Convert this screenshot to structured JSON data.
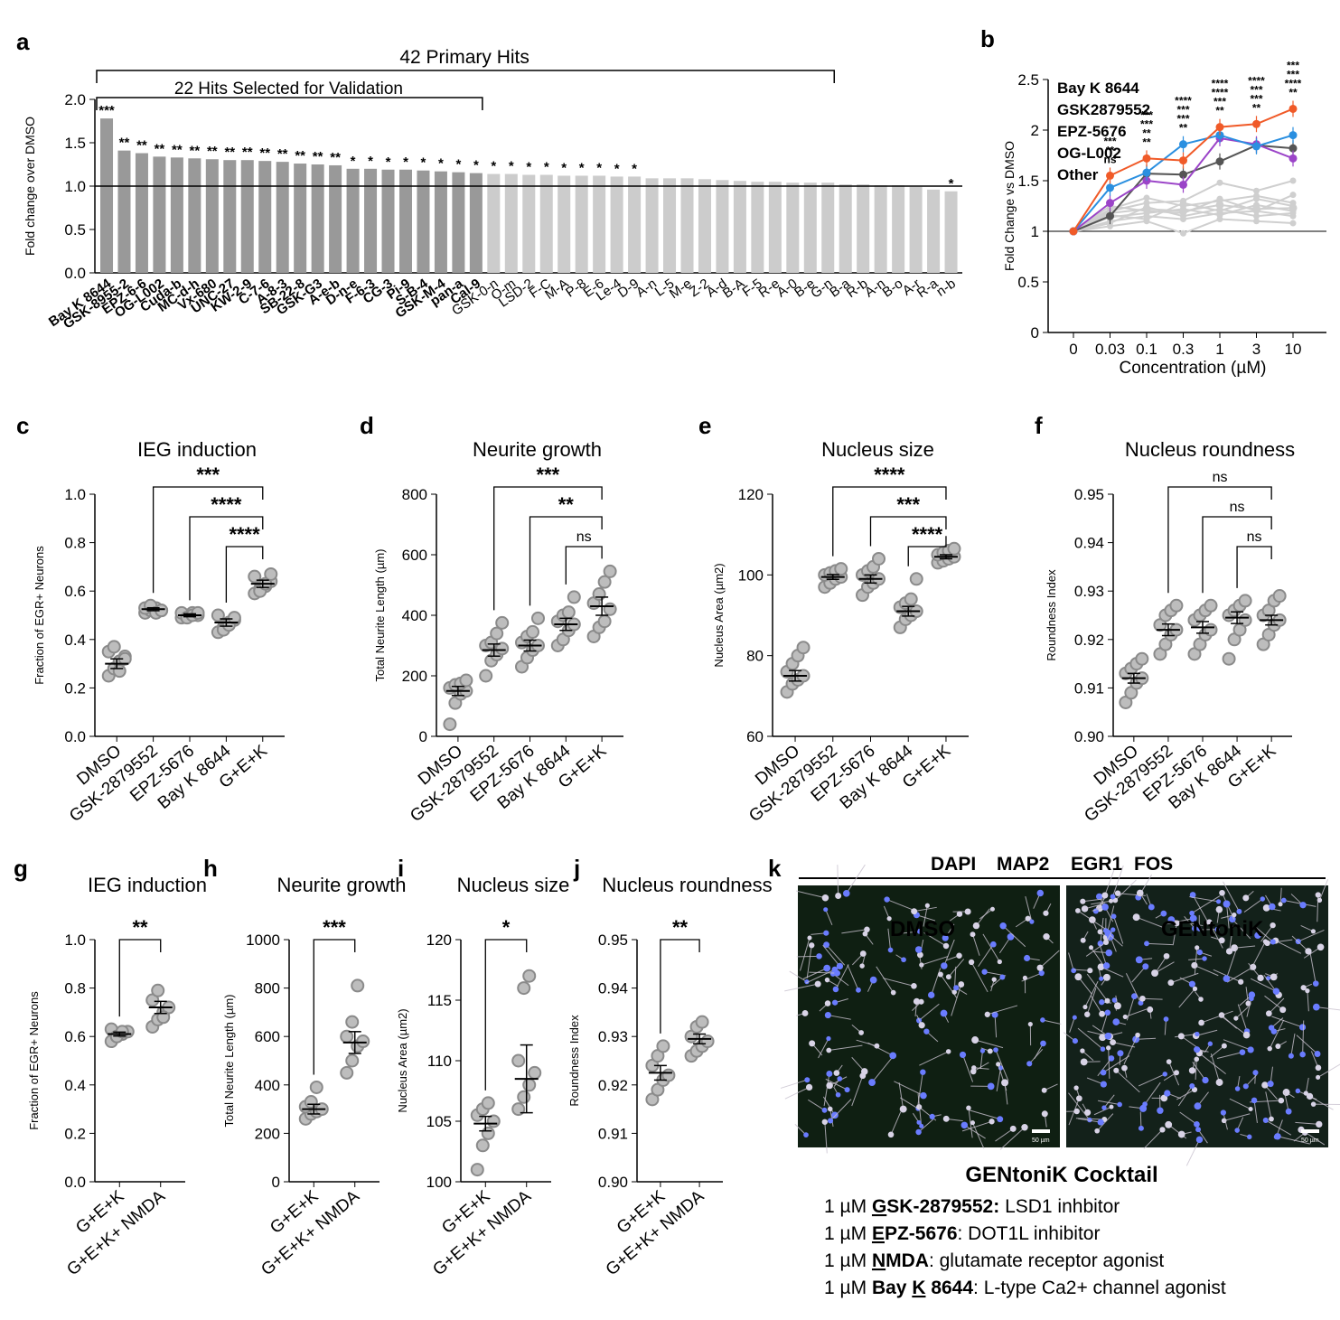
{
  "panel_letters": [
    "a",
    "b",
    "c",
    "d",
    "e",
    "f",
    "g",
    "h",
    "i",
    "j",
    "k"
  ],
  "colors": {
    "dark_bar": "#999999",
    "light_bar": "#cccccc",
    "dot": "#9e9e9e",
    "bay_k": "#f05a28",
    "gsk": "#2a8fe0",
    "epz": "#9b44c8",
    "og": "#555555",
    "other": "#cfcfcf"
  },
  "chart_data": [
    {
      "id": "a",
      "type": "bar",
      "ylabel": "Fold change over DMSO",
      "ylim": [
        0,
        2.0
      ],
      "yticks": [
        "0.0",
        "0.5",
        "1.0",
        "1.5",
        "2.0"
      ],
      "bracket_outer": "42 Primary Hits",
      "bracket_inner": "22 Hits Selected for Validation",
      "values": [
        1.78,
        1.41,
        1.38,
        1.34,
        1.33,
        1.32,
        1.31,
        1.3,
        1.3,
        1.29,
        1.28,
        1.26,
        1.25,
        1.24,
        1.2,
        1.2,
        1.19,
        1.19,
        1.18,
        1.17,
        1.16,
        1.15,
        1.14,
        1.14,
        1.13,
        1.13,
        1.12,
        1.12,
        1.12,
        1.11,
        1.11,
        1.09,
        1.09,
        1.09,
        1.08,
        1.07,
        1.06,
        1.05,
        1.05,
        1.04,
        1.04,
        1.04,
        1.02,
        1.02,
        1.01,
        1.01,
        0.99,
        0.96,
        0.94
      ],
      "stars": [
        "***",
        "**",
        "**",
        "**",
        "**",
        "**",
        "**",
        "**",
        "**",
        "**",
        "**",
        "**",
        "**",
        "**",
        "*",
        "*",
        "*",
        "*",
        "*",
        "*",
        "*",
        "*",
        "*",
        "*",
        "*",
        "*",
        "*",
        "*",
        "*",
        "*",
        "*",
        "",
        "",
        "",
        "",
        "",
        "",
        "",
        "",
        "",
        "",
        "",
        "",
        "",
        "",
        "",
        "",
        "",
        "*"
      ],
      "highlight_count": 22,
      "primary_count": 42,
      "tick_labels": [
        "Bay K 8644",
        "GSK-8955-2",
        "EPZ-6-6",
        "OG-L002",
        "Cuda-b",
        "MC-d-h",
        "Vx-680",
        "UNC-27",
        "KW-2-9",
        "C-7-6",
        "A-8-3",
        "SB-22-8",
        "GSK-G3",
        "A-e-b",
        "D-n-e",
        "F-6-3",
        "CG-3",
        "Pi-9",
        "S-B-4",
        "GSK-M-4",
        "pan-a",
        "Cal-9",
        "GSK-0-n",
        "O-m",
        "LSD-2",
        "F-C",
        "M-A",
        "P-8",
        "E-6",
        "Le-4",
        "D-9",
        "A-n",
        "L-5",
        "M-e",
        "Z-2",
        "A-d",
        "B-A",
        "F-5",
        "R-e",
        "A-0",
        "B-e",
        "G-n",
        "B-a",
        "R-b",
        "A-n",
        "B-o",
        "A-r",
        "R-a",
        "n-b"
      ]
    },
    {
      "id": "b",
      "type": "line",
      "ylabel": "Fold Change vs DMSO",
      "xlabel": "Concentration (µM)",
      "categories": [
        "0",
        "0.03",
        "0.1",
        "0.3",
        "1",
        "3",
        "10"
      ],
      "ylim": [
        0,
        2.5
      ],
      "yticks": [
        "0",
        "0.5",
        "1",
        "1.5",
        "2",
        "2.5"
      ],
      "series": [
        {
          "name": "Bay K 8644",
          "color": "#f05a28",
          "values": [
            1.0,
            1.55,
            1.72,
            1.7,
            2.03,
            2.06,
            2.21
          ]
        },
        {
          "name": "GSK2879552",
          "color": "#2a8fe0",
          "values": [
            1.0,
            1.43,
            1.58,
            1.86,
            1.95,
            1.84,
            1.95
          ]
        },
        {
          "name": "EPZ-5676",
          "color": "#9b44c8",
          "values": [
            1.0,
            1.28,
            1.5,
            1.46,
            1.92,
            1.86,
            1.72
          ]
        },
        {
          "name": "OG-L002",
          "color": "#555555",
          "values": [
            1.0,
            1.15,
            1.57,
            1.56,
            1.69,
            1.85,
            1.82
          ]
        },
        {
          "name": "Other",
          "color": "#cfcfcf",
          "values": [
            1.0,
            1.18,
            1.22,
            1.2,
            1.26,
            1.22,
            1.23
          ]
        }
      ],
      "other_lines": [
        [
          1.0,
          1.1,
          1.15,
          1.12,
          1.18,
          1.2,
          1.15
        ],
        [
          1.0,
          1.2,
          1.28,
          1.3,
          1.48,
          1.4,
          1.5
        ],
        [
          1.0,
          1.05,
          1.1,
          0.98,
          1.12,
          1.1,
          1.08
        ],
        [
          1.0,
          1.22,
          1.33,
          1.25,
          1.3,
          1.35,
          1.28
        ],
        [
          1.0,
          1.14,
          1.18,
          1.22,
          1.16,
          1.26,
          1.2
        ],
        [
          1.0,
          1.25,
          1.2,
          1.18,
          1.32,
          1.2,
          1.36
        ],
        [
          1.0,
          1.08,
          1.24,
          1.15,
          1.22,
          1.15,
          1.18
        ],
        [
          1.0,
          1.16,
          1.12,
          1.28,
          1.2,
          1.32,
          1.25
        ]
      ],
      "star_columns": [
        [
          "***",
          "**",
          "ns"
        ],
        [
          "***",
          "***",
          "**",
          "**"
        ],
        [
          "****",
          "***",
          "***",
          "**"
        ],
        [
          "****",
          "****",
          "***",
          "**"
        ],
        [
          "****",
          "***",
          "***",
          "**"
        ],
        [
          "***",
          "***",
          "****",
          "**"
        ]
      ]
    },
    {
      "id": "c",
      "type": "scatter",
      "title": "IEG induction",
      "ylabel": "Fraction of EGR+ Neurons",
      "ylim": [
        0.0,
        1.0
      ],
      "yticks": [
        "0.0",
        "0.2",
        "0.4",
        "0.6",
        "0.8",
        "1.0"
      ],
      "categories": [
        "DMSO",
        "GSK-2879552",
        "EPZ-5676",
        "Bay K 8644",
        "G+E+K"
      ],
      "points": [
        [
          0.25,
          0.28,
          0.31,
          0.33,
          0.35,
          0.37,
          0.27,
          0.32
        ],
        [
          0.51,
          0.52,
          0.53,
          0.52,
          0.53,
          0.54,
          0.51,
          0.52
        ],
        [
          0.49,
          0.5,
          0.51,
          0.5,
          0.51,
          0.49,
          0.5,
          0.51
        ],
        [
          0.43,
          0.45,
          0.47,
          0.48,
          0.5,
          0.44,
          0.46,
          0.49
        ],
        [
          0.59,
          0.61,
          0.62,
          0.64,
          0.66,
          0.6,
          0.63,
          0.67
        ]
      ],
      "means": [
        0.3,
        0.525,
        0.5,
        0.47,
        0.63
      ],
      "sems": [
        0.02,
        0.006,
        0.006,
        0.015,
        0.015
      ],
      "comparisons": [
        {
          "from": 1,
          "to": 4,
          "label": "***"
        },
        {
          "from": 2,
          "to": 4,
          "label": "****"
        },
        {
          "from": 3,
          "to": 4,
          "label": "****"
        }
      ]
    },
    {
      "id": "d",
      "type": "scatter",
      "title": "Neurite growth",
      "ylabel": "Total Neurite Length (µm)",
      "ylim": [
        0,
        800
      ],
      "yticks": [
        "0",
        "200",
        "400",
        "600",
        "800"
      ],
      "categories": [
        "DMSO",
        "GSK-2879552",
        "EPZ-5676",
        "Bay K 8644",
        "G+E+K"
      ],
      "points": [
        [
          40,
          110,
          140,
          150,
          160,
          170,
          175,
          185
        ],
        [
          200,
          250,
          270,
          290,
          300,
          310,
          340,
          375
        ],
        [
          230,
          260,
          285,
          300,
          310,
          330,
          345,
          390
        ],
        [
          300,
          320,
          350,
          370,
          380,
          400,
          410,
          460
        ],
        [
          330,
          360,
          380,
          420,
          440,
          470,
          510,
          545
        ]
      ],
      "means": [
        150,
        285,
        300,
        370,
        430
      ],
      "sems": [
        15,
        20,
        18,
        20,
        30
      ],
      "comparisons": [
        {
          "from": 1,
          "to": 4,
          "label": "***"
        },
        {
          "from": 2,
          "to": 4,
          "label": "**"
        },
        {
          "from": 3,
          "to": 4,
          "label": "ns"
        }
      ]
    },
    {
      "id": "e",
      "type": "scatter",
      "title": "Nucleus size",
      "ylabel": "Nucleus Area (µm2)",
      "ylim": [
        60,
        120
      ],
      "yticks": [
        "60",
        "80",
        "100",
        "120"
      ],
      "categories": [
        "DMSO",
        "GSK-2879552",
        "EPZ-5676",
        "Bay K 8644",
        "G+E+K"
      ],
      "points": [
        [
          71,
          73,
          74,
          75,
          76,
          78,
          80,
          82
        ],
        [
          97,
          98,
          99,
          99.5,
          100,
          100.5,
          101,
          101.5
        ],
        [
          95,
          97,
          98,
          99,
          100,
          101,
          102,
          104
        ],
        [
          87,
          89,
          90,
          91,
          92,
          93,
          94,
          99
        ],
        [
          103,
          103.5,
          104,
          104.5,
          105,
          105.5,
          106,
          106.5
        ]
      ],
      "means": [
        75,
        99.5,
        99,
        91,
        104.5
      ],
      "sems": [
        1.3,
        0.6,
        1.0,
        1.2,
        0.5
      ],
      "comparisons": [
        {
          "from": 1,
          "to": 4,
          "label": "****"
        },
        {
          "from": 2,
          "to": 4,
          "label": "***"
        },
        {
          "from": 3,
          "to": 4,
          "label": "****"
        }
      ]
    },
    {
      "id": "f",
      "type": "scatter",
      "title": "Nucleus roundness",
      "ylabel": "Roundness Index",
      "ylim": [
        0.9,
        0.95
      ],
      "yticks": [
        "0.90",
        "0.91",
        "0.92",
        "0.93",
        "0.94",
        "0.95"
      ],
      "categories": [
        "DMSO",
        "GSK-2879552",
        "EPZ-5676",
        "Bay K 8644",
        "G+E+K"
      ],
      "points": [
        [
          0.907,
          0.909,
          0.911,
          0.912,
          0.913,
          0.914,
          0.915,
          0.916
        ],
        [
          0.917,
          0.919,
          0.921,
          0.922,
          0.923,
          0.925,
          0.926,
          0.927
        ],
        [
          0.917,
          0.919,
          0.921,
          0.922,
          0.924,
          0.925,
          0.926,
          0.927
        ],
        [
          0.916,
          0.92,
          0.922,
          0.924,
          0.925,
          0.926,
          0.927,
          0.928
        ],
        [
          0.919,
          0.921,
          0.923,
          0.924,
          0.925,
          0.926,
          0.928,
          0.929
        ]
      ],
      "means": [
        0.912,
        0.922,
        0.9225,
        0.9245,
        0.924
      ],
      "sems": [
        0.001,
        0.0012,
        0.0012,
        0.0012,
        0.001
      ],
      "comparisons": [
        {
          "from": 1,
          "to": 4,
          "label": "ns"
        },
        {
          "from": 2,
          "to": 4,
          "label": "ns"
        },
        {
          "from": 3,
          "to": 4,
          "label": "ns"
        }
      ]
    },
    {
      "id": "g",
      "type": "scatter",
      "title": "IEG induction",
      "ylabel": "Fraction of EGR+ Neurons",
      "ylim": [
        0.0,
        1.0
      ],
      "yticks": [
        "0.0",
        "0.2",
        "0.4",
        "0.6",
        "0.8",
        "1.0"
      ],
      "categories": [
        "G+E+K",
        "G+E+K+ NMDA"
      ],
      "points": [
        [
          0.58,
          0.6,
          0.61,
          0.62,
          0.63,
          0.6,
          0.62
        ],
        [
          0.64,
          0.67,
          0.7,
          0.72,
          0.75,
          0.79,
          0.68
        ]
      ],
      "means": [
        0.61,
        0.72
      ],
      "sems": [
        0.008,
        0.025
      ],
      "comparisons": [
        {
          "from": 0,
          "to": 1,
          "label": "**"
        }
      ]
    },
    {
      "id": "h",
      "type": "scatter",
      "title": "Neurite growth",
      "ylabel": "Total Neurite Length (µm)",
      "ylim": [
        0,
        1000
      ],
      "yticks": [
        "0",
        "200",
        "400",
        "600",
        "800",
        "1000"
      ],
      "categories": [
        "G+E+K",
        "G+E+K+ NMDA"
      ],
      "points": [
        [
          260,
          280,
          290,
          300,
          310,
          330,
          390
        ],
        [
          450,
          500,
          560,
          580,
          600,
          660,
          810
        ]
      ],
      "means": [
        300,
        575
      ],
      "sems": [
        20,
        45
      ],
      "comparisons": [
        {
          "from": 0,
          "to": 1,
          "label": "***"
        }
      ]
    },
    {
      "id": "i",
      "type": "scatter",
      "title": "Nucleus size",
      "ylabel": "Nucleus Area (µm2)",
      "ylim": [
        100,
        120
      ],
      "yticks": [
        "100",
        "105",
        "110",
        "115",
        "120"
      ],
      "categories": [
        "G+E+K",
        "G+E+K+ NMDA"
      ],
      "points": [
        [
          101,
          103,
          104,
          105,
          105.5,
          106,
          106.5
        ],
        [
          106,
          107,
          108,
          109,
          110,
          116,
          117
        ]
      ],
      "means": [
        104.8,
        108.5
      ],
      "sems": [
        0.6,
        2.8
      ],
      "comparisons": [
        {
          "from": 0,
          "to": 1,
          "label": "*"
        }
      ]
    },
    {
      "id": "j",
      "type": "scatter",
      "title": "Nucleus roundness",
      "ylabel": "Roundness Index",
      "ylim": [
        0.9,
        0.95
      ],
      "yticks": [
        "0.90",
        "0.91",
        "0.92",
        "0.93",
        "0.94",
        "0.95"
      ],
      "categories": [
        "G+E+K",
        "G+E+K+ NMDA"
      ],
      "points": [
        [
          0.917,
          0.919,
          0.921,
          0.922,
          0.924,
          0.926,
          0.928
        ],
        [
          0.926,
          0.927,
          0.928,
          0.929,
          0.93,
          0.932,
          0.933
        ]
      ],
      "means": [
        0.9225,
        0.9295
      ],
      "sems": [
        0.0015,
        0.001
      ],
      "comparisons": [
        {
          "from": 0,
          "to": 1,
          "label": "**"
        }
      ]
    }
  ],
  "panel_k": {
    "stain_labels": [
      "DAPI",
      "MAP2",
      "EGR1",
      "FOS"
    ],
    "image_left_label": "DMSO",
    "image_right_label": "GENtoniK",
    "scale_bar_text": "50 µm",
    "cocktail_title": "GENtoniK Cocktail",
    "cocktail_items": [
      {
        "dose": "1 µM",
        "initial": "G",
        "rest": "SK-2879552:",
        "desc": "LSD1 inhbitor"
      },
      {
        "dose": "1 µM",
        "initial": "E",
        "rest": "PZ-5676",
        "desc": ": DOT1L inhibitor"
      },
      {
        "dose": "1 µM",
        "initial": "N",
        "rest": "MDA",
        "desc": ": glutamate receptor agonist"
      },
      {
        "dose": "1 µM",
        "prefix": "Bay ",
        "initial": "K",
        "rest": " 8644",
        "desc": ": L-type Ca2+ channel agonist"
      }
    ]
  }
}
